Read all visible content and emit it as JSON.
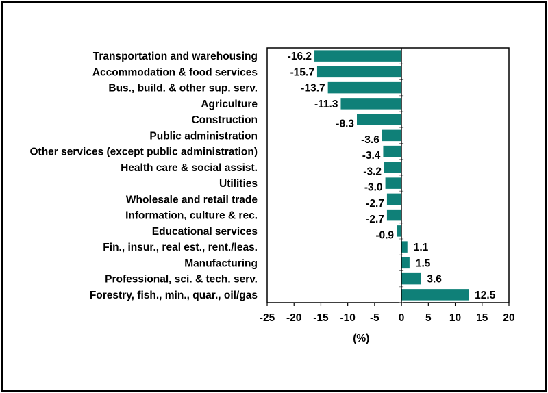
{
  "chart_data": {
    "type": "bar",
    "orientation": "horizontal",
    "categories": [
      "Transportation and warehousing",
      "Accommodation & food services",
      "Bus., build. & other sup. serv.",
      "Agriculture",
      "Construction",
      "Public administration",
      "Other services (except public administration)",
      "Health care & social assist.",
      "Utilities",
      "Wholesale and retail trade",
      "Information, culture & rec.",
      "Educational services",
      "Fin., insur., real est., rent./leas.",
      "Manufacturing",
      "Professional, sci. & tech. serv.",
      "Forestry, fish., min., quar., oil/gas"
    ],
    "values": [
      -16.2,
      -15.7,
      -13.7,
      -11.3,
      -8.3,
      -3.6,
      -3.4,
      -3.2,
      -3.0,
      -2.7,
      -2.7,
      -0.9,
      1.1,
      1.5,
      3.6,
      12.5
    ],
    "value_labels": [
      "-16.2",
      "-15.7",
      "-13.7",
      "-11.3",
      "-8.3",
      "-3.6",
      "-3.4",
      "-3.2",
      "-3.0",
      "-2.7",
      "-2.7",
      "-0.9",
      "1.1",
      "1.5",
      "3.6",
      "12.5"
    ],
    "title": "",
    "xlabel": "(%)",
    "ylabel": "",
    "xlim": [
      -25,
      20
    ],
    "xticks": [
      -25,
      -20,
      -15,
      -10,
      -5,
      0,
      5,
      10,
      15,
      20
    ],
    "xtick_labels": [
      "-25",
      "-20",
      "-15",
      "-10",
      "-5",
      "0",
      "5",
      "10",
      "15",
      "20"
    ],
    "grid": false,
    "legend": "none",
    "bar_color": "#0f8078"
  }
}
